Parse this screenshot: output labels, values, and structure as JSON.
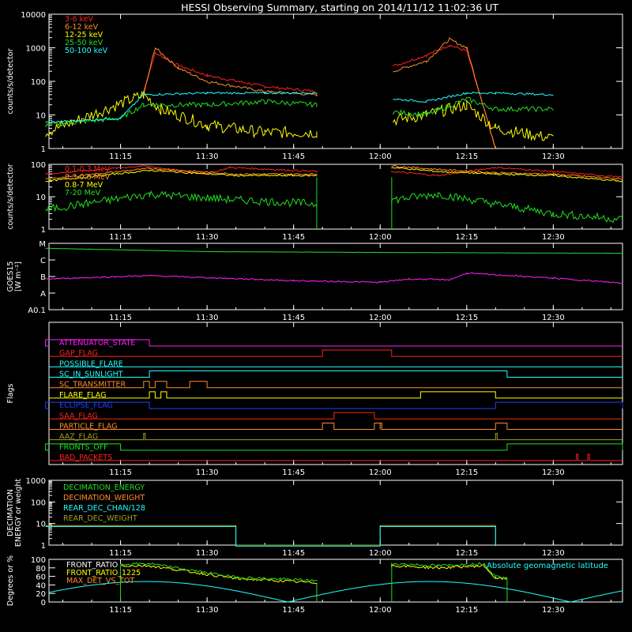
{
  "title": "HESSI Observing Summary, starting on 2014/11/12 11:02:36 UT",
  "time_ticks": [
    "11:15",
    "11:30",
    "11:45",
    "12:00",
    "12:15",
    "12:30"
  ],
  "colors": {
    "red": "#ff2020",
    "orange": "#ff8c28",
    "yellow": "#ffff00",
    "green": "#20e020",
    "cyan": "#20ffff",
    "magenta": "#ff20ff",
    "blue": "#2040ff",
    "olive": "#a0a020",
    "white": "#ffffff"
  },
  "chart_data": [
    {
      "id": "lightcurve",
      "type": "line",
      "ylabel": "counts/s/detector",
      "yscale": "log",
      "ylim": [
        1,
        10000
      ],
      "ytick_labels": [
        "1",
        "10",
        "100",
        "1000",
        "10000"
      ],
      "legend": [
        "3-6 keV",
        "6-12 keV",
        "12-25 keV",
        "25-50 keV",
        "50-100 keV"
      ],
      "series": [
        {
          "name": "3-6 keV",
          "color": "red",
          "x": [
            "11:19",
            "11:21",
            "11:25",
            "11:30",
            "11:40",
            "11:49",
            "12:08",
            "12:12",
            "12:15",
            "12:20"
          ],
          "y": [
            50,
            700,
            300,
            150,
            70,
            50,
            600,
            1200,
            800,
            1
          ]
        },
        {
          "name": "6-12 keV",
          "color": "orange",
          "x": [
            "11:19",
            "11:21",
            "11:25",
            "11:30",
            "11:40",
            "11:49",
            "12:08",
            "12:12",
            "12:15",
            "12:20"
          ],
          "y": [
            40,
            1000,
            250,
            100,
            50,
            40,
            400,
            1800,
            1000,
            1
          ]
        },
        {
          "name": "12-25 keV",
          "color": "yellow",
          "x": [
            "11:02",
            "11:19",
            "11:22",
            "11:30",
            "11:40",
            "11:49",
            "12:08",
            "12:15",
            "12:20",
            "12:30"
          ],
          "y": [
            3,
            40,
            15,
            5,
            3,
            3,
            10,
            20,
            4,
            2
          ]
        },
        {
          "name": "25-50 keV",
          "color": "green",
          "x": [
            "11:02",
            "11:15",
            "11:19",
            "11:30",
            "11:40",
            "11:49",
            "12:08",
            "12:15",
            "12:20",
            "12:30"
          ],
          "y": [
            5,
            8,
            20,
            20,
            25,
            20,
            10,
            30,
            15,
            15
          ]
        },
        {
          "name": "50-100 keV",
          "color": "cyan",
          "x": [
            "11:02",
            "11:15",
            "11:19",
            "11:30",
            "11:40",
            "11:49",
            "12:08",
            "12:15",
            "12:20",
            "12:30"
          ],
          "y": [
            6,
            8,
            40,
            45,
            45,
            45,
            25,
            45,
            45,
            40
          ]
        }
      ]
    },
    {
      "id": "gamma",
      "type": "line",
      "ylabel": "counts/s/detector",
      "yscale": "log",
      "ylim": [
        1,
        100
      ],
      "ytick_labels": [
        "1",
        "10",
        "100"
      ],
      "legend": [
        "0.1-0.3 MeV",
        "0.3-0.8 MeV",
        "0.8-7 MeV",
        "7-20 MeV"
      ],
      "series": [
        {
          "name": "0.1-0.3 MeV",
          "color": "red",
          "x": [
            "11:02",
            "11:19",
            "11:30",
            "11:34",
            "11:49",
            "12:02",
            "12:10",
            "12:20",
            "12:30",
            "12:42"
          ],
          "y": [
            50,
            90,
            50,
            80,
            60,
            60,
            45,
            80,
            60,
            40
          ]
        },
        {
          "name": "0.3-0.8 MeV",
          "color": "orange",
          "x": [
            "11:02",
            "11:20",
            "11:35",
            "11:49",
            "12:02",
            "12:10",
            "12:20",
            "12:30",
            "12:42"
          ],
          "y": [
            35,
            75,
            50,
            50,
            90,
            70,
            55,
            50,
            35
          ]
        },
        {
          "name": "0.8-7 MeV",
          "color": "yellow",
          "x": [
            "11:02",
            "11:20",
            "11:35",
            "11:49",
            "12:02",
            "12:10",
            "12:20",
            "12:30",
            "12:42"
          ],
          "y": [
            30,
            65,
            45,
            45,
            80,
            60,
            50,
            45,
            30
          ]
        },
        {
          "name": "7-20 MeV",
          "color": "green",
          "x": [
            "11:02",
            "11:20",
            "11:35",
            "11:49",
            "12:02",
            "12:10",
            "12:20",
            "12:30",
            "12:42"
          ],
          "y": [
            4,
            12,
            8,
            6,
            8,
            12,
            6,
            3,
            2
          ]
        }
      ]
    },
    {
      "id": "goes",
      "type": "line",
      "ylabel": "GOES15",
      "ylabel2": "[W m⁻²]",
      "ytick_labels": [
        "A0.1",
        "A",
        "B",
        "C",
        "M"
      ],
      "series": [
        {
          "name": "long",
          "color": "green",
          "x": [
            "11:02",
            "11:30",
            "12:00",
            "12:42"
          ],
          "y": [
            3.7,
            3.5,
            3.45,
            3.4
          ]
        },
        {
          "name": "short",
          "color": "magenta",
          "x": [
            "11:02",
            "11:20",
            "11:45",
            "12:00",
            "12:05",
            "12:12",
            "12:15",
            "12:30",
            "12:42"
          ],
          "y": [
            1.85,
            2.05,
            1.75,
            1.65,
            1.85,
            1.8,
            2.2,
            1.9,
            1.6
          ]
        }
      ]
    },
    {
      "id": "flags",
      "type": "step",
      "ylabel": "Flags",
      "series": [
        {
          "name": "ATTENUATOR_STATE",
          "color": "magenta",
          "on": [
            [
              "11:02",
              "11:20"
            ]
          ]
        },
        {
          "name": "GAP_FLAG",
          "color": "red",
          "on": [
            [
              "11:50",
              "12:02"
            ]
          ]
        },
        {
          "name": "POSSIBLE_FLARE",
          "color": "cyan",
          "on": []
        },
        {
          "name": "SC_IN_SUNLIGHT",
          "color": "cyan",
          "on": [
            [
              "11:20",
              "12:22"
            ]
          ]
        },
        {
          "name": "SC_TRANSMITTER",
          "color": "orange",
          "on": [
            [
              "11:19",
              "11:20"
            ],
            [
              "11:21",
              "11:23"
            ],
            [
              "11:27",
              "11:30"
            ]
          ]
        },
        {
          "name": "FLARE_FLAG",
          "color": "yellow",
          "on": [
            [
              "11:20",
              "11:21"
            ],
            [
              "11:22",
              "11:23"
            ],
            [
              "12:07",
              "12:20"
            ]
          ]
        },
        {
          "name": "ECLIPSE_FLAG",
          "color": "blue",
          "on": [
            [
              "11:02",
              "11:20"
            ],
            [
              "12:20",
              "12:42"
            ]
          ]
        },
        {
          "name": "SAA_FLAG",
          "color": "red",
          "on": [
            [
              "11:52",
              "11:59"
            ]
          ]
        },
        {
          "name": "PARTICLE_FLAG",
          "color": "orange",
          "on": [
            [
              "11:50",
              "11:52"
            ],
            [
              "11:59",
              "12:00"
            ],
            [
              "12:00",
              "12:00"
            ],
            [
              "12:20",
              "12:22"
            ]
          ]
        },
        {
          "name": "AAZ_FLAG",
          "color": "olive",
          "on": [
            [
              "11:19",
              "11:19"
            ],
            [
              "12:20",
              "12:20"
            ]
          ]
        },
        {
          "name": "FRONTS_OFF",
          "color": "green",
          "on": [
            [
              "11:02",
              "11:15"
            ],
            [
              "12:22",
              "12:42"
            ]
          ]
        },
        {
          "name": "BAD_PACKETS",
          "color": "red",
          "on": [
            [
              "12:34",
              "12:34"
            ],
            [
              "12:36",
              "12:36"
            ]
          ]
        }
      ]
    },
    {
      "id": "decimation",
      "type": "line",
      "ylabel": "DECIMATION",
      "ylabel2": "ENERGY or weight",
      "yscale": "log",
      "ylim": [
        1,
        1000
      ],
      "ytick_labels": [
        "1",
        "10",
        "100",
        "1000"
      ],
      "legend": [
        "DECIMATION_ENERGY",
        "DECIMATION_WEIGHT",
        "REAR_DEC_CHAN/128",
        "REAR_DEC_WEIGHT"
      ],
      "series": [
        {
          "name": "REAR_DEC_WEIGHT",
          "color": "olive",
          "x": [
            "11:02",
            "11:35",
            "11:35",
            "12:00",
            "12:00",
            "12:20",
            "12:20"
          ],
          "y": [
            8,
            8,
            1,
            1,
            8,
            8,
            1
          ]
        },
        {
          "name": "REAR_DEC_CHAN/128",
          "color": "cyan",
          "x": [
            "11:02",
            "11:35",
            "11:35",
            "12:00",
            "12:00",
            "12:20",
            "12:20"
          ],
          "y": [
            8,
            8,
            1,
            1,
            8,
            8,
            1
          ]
        }
      ]
    },
    {
      "id": "ratios",
      "type": "line",
      "ylabel": "Degrees or %",
      "ylim": [
        0,
        100
      ],
      "ytick_labels": [
        "0",
        "20",
        "40",
        "60",
        "80",
        "100"
      ],
      "legend": [
        "FRONT_RATIO",
        "FRONT_RATIO_1225",
        "MAX_DET_VS_TOT"
      ],
      "annotation": "Absolute geomagnetic latitude",
      "series": [
        {
          "name": "FRONT_RATIO",
          "color": "white",
          "x": [
            "11:02",
            "11:15",
            "11:35",
            "11:49",
            "12:02",
            "12:20",
            "12:42"
          ],
          "y": [
            0,
            85,
            50,
            45,
            90,
            55,
            0
          ]
        },
        {
          "name": "FRONT_RATIO_1225",
          "color": "yellow",
          "x": [
            "11:15",
            "11:20",
            "11:35",
            "11:49",
            "12:02",
            "12:10",
            "12:18",
            "12:20",
            "12:22"
          ],
          "y": [
            85,
            85,
            55,
            45,
            85,
            80,
            85,
            55,
            55
          ]
        },
        {
          "name": "MAX_DET_VS_TOT",
          "color": "green",
          "x": [
            "11:15",
            "11:20",
            "11:35",
            "11:49",
            "12:02",
            "12:10",
            "12:18",
            "12:20",
            "12:22"
          ],
          "y": [
            88,
            90,
            58,
            50,
            90,
            85,
            90,
            60,
            58
          ]
        },
        {
          "name": "Absolute geomagnetic latitude",
          "color": "cyan",
          "x": [
            "11:02",
            "11:20",
            "11:44",
            "12:05",
            "12:29",
            "12:42"
          ],
          "y": [
            20,
            48,
            0,
            48,
            0,
            20
          ]
        }
      ]
    }
  ]
}
